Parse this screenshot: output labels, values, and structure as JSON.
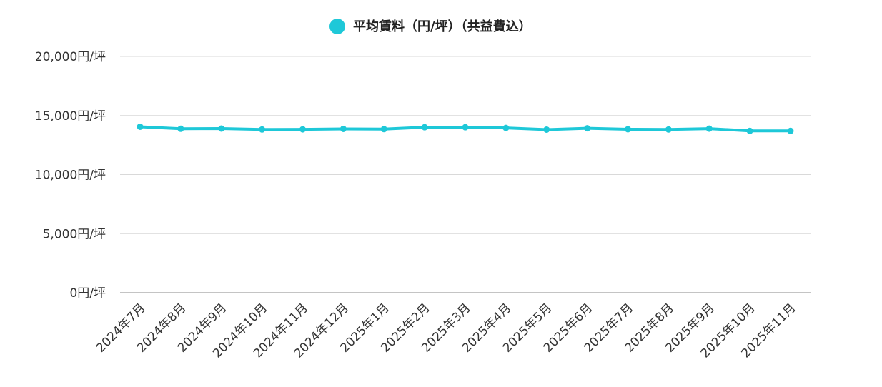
{
  "chart_data": {
    "type": "line",
    "categories": [
      "2024年7月",
      "2024年8月",
      "2024年9月",
      "2024年10月",
      "2024年11月",
      "2024年12月",
      "2025年1月",
      "2025年2月",
      "2025年3月",
      "2025年4月",
      "2025年5月",
      "2025年6月",
      "2025年7月",
      "2025年8月",
      "2025年9月",
      "2025年10月",
      "2025年11月"
    ],
    "series": [
      {
        "name": "平均賃料（円/坪）（共益費込）",
        "color": "#1ec8d8",
        "values": [
          14050,
          13880,
          13900,
          13820,
          13830,
          13870,
          13850,
          14010,
          14010,
          13950,
          13810,
          13920,
          13840,
          13820,
          13890,
          13700,
          13700
        ]
      }
    ],
    "ylim": [
      0,
      20000
    ],
    "yticks": [
      0,
      5000,
      10000,
      15000,
      20000
    ],
    "ytick_labels": [
      "0円/坪",
      "5,000円/坪",
      "10,000円/坪",
      "15,000円/坪",
      "20,000円/坪"
    ],
    "title": "",
    "xlabel": "",
    "ylabel": "",
    "legend_position": "top-center",
    "grid": true
  }
}
